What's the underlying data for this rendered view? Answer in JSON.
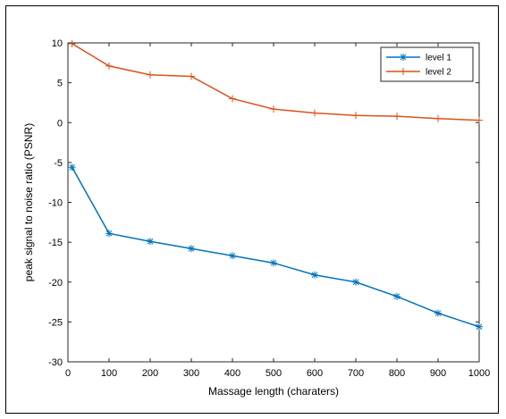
{
  "chart_data": {
    "type": "line",
    "xlabel": "Massage length (charaters)",
    "ylabel": "peak signal to noise ratio (PSNR)",
    "xlim": [
      0,
      1000
    ],
    "ylim": [
      -30,
      10
    ],
    "xticks": [
      0,
      100,
      200,
      300,
      400,
      500,
      600,
      700,
      800,
      900,
      1000
    ],
    "yticks": [
      10,
      5,
      0,
      -5,
      -10,
      -15,
      -20,
      -25,
      -30
    ],
    "grid": false,
    "legend_position": "top-right",
    "series": [
      {
        "name": "level 1",
        "color": "#0072BD",
        "marker": "asterisk",
        "x": [
          10,
          100,
          200,
          300,
          400,
          500,
          600,
          700,
          800,
          900,
          1000
        ],
        "y": [
          -5.6,
          -13.9,
          -14.9,
          -15.8,
          -16.7,
          -17.6,
          -19.1,
          -20.0,
          -21.8,
          -23.9,
          -25.6
        ]
      },
      {
        "name": "level 2",
        "color": "#D95319",
        "marker": "plus",
        "x": [
          10,
          100,
          200,
          300,
          400,
          500,
          600,
          700,
          800,
          900,
          1000
        ],
        "y": [
          9.9,
          7.1,
          6.0,
          5.8,
          3.0,
          1.7,
          1.2,
          0.9,
          0.8,
          0.5,
          0.3
        ]
      }
    ]
  }
}
